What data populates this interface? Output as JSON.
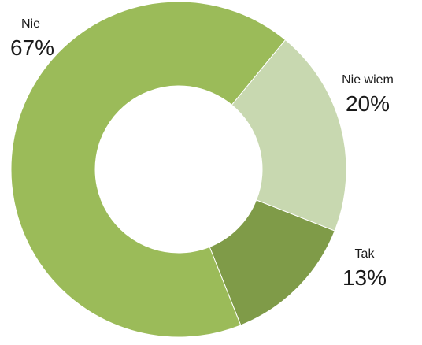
{
  "chart_data": {
    "type": "pie",
    "style": "donut",
    "categories": [
      "Tak",
      "Nie",
      "Nie wiem"
    ],
    "values": [
      13,
      67,
      20
    ],
    "percent_labels": [
      "13%",
      "67%",
      "20%"
    ],
    "colors": [
      "#7f9b48",
      "#9bbb59",
      "#c8d8b0"
    ],
    "title": "",
    "legend": "none"
  }
}
